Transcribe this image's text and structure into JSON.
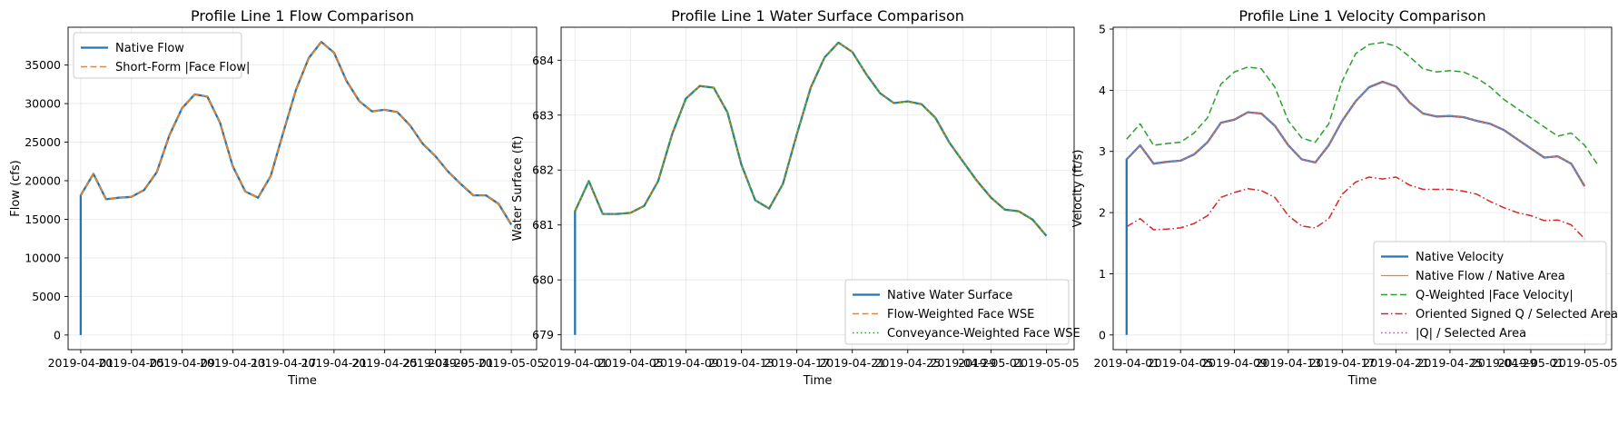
{
  "chart_data": [
    {
      "type": "line",
      "title": "Profile Line 1 Flow Comparison",
      "xlabel": "Time",
      "ylabel": "Flow (cfs)",
      "x_ticks": [
        "2019-04-01",
        "2019-04-05",
        "2019-04-09",
        "2019-04-13",
        "2019-04-17",
        "2019-04-21",
        "2019-04-25",
        "2019-04-29",
        "2019-05-01",
        "2019-05-05"
      ],
      "x_tick_labels_visible": [
        "2019-04-01",
        "2019-04-05",
        "2019-04-09",
        "2019-04-13",
        "2019-04-17",
        "2019-04-21",
        "2019-04-25",
        "2019-04-29",
        "2019-05-01",
        "2019-05-05"
      ],
      "y_ticks": [
        0,
        5000,
        10000,
        15000,
        20000,
        25000,
        30000,
        35000
      ],
      "y_tick_labels": [
        "0",
        "5000",
        "10000",
        "15000",
        "20000",
        "25000",
        "30000",
        "35000"
      ],
      "xlim": [
        "2019-03-31",
        "2019-05-07"
      ],
      "ylim": [
        -1900,
        39900
      ],
      "grid": true,
      "legend_position": "upper left",
      "x": [
        "2019-04-01",
        "2019-04-01",
        "2019-04-02",
        "2019-04-03",
        "2019-04-04",
        "2019-04-05",
        "2019-04-06",
        "2019-04-07",
        "2019-04-08",
        "2019-04-09",
        "2019-04-10",
        "2019-04-11",
        "2019-04-12",
        "2019-04-13",
        "2019-04-14",
        "2019-04-15",
        "2019-04-16",
        "2019-04-17",
        "2019-04-18",
        "2019-04-19",
        "2019-04-20",
        "2019-04-21",
        "2019-04-22",
        "2019-04-23",
        "2019-04-24",
        "2019-04-25",
        "2019-04-26",
        "2019-04-27",
        "2019-04-28",
        "2019-04-29",
        "2019-04-30",
        "2019-05-01",
        "2019-05-02",
        "2019-05-03",
        "2019-05-04",
        "2019-05-05",
        "2019-05-06"
      ],
      "series": [
        {
          "name": "Native Flow",
          "color": "#1f77b4",
          "style": "solid",
          "width": 2.3,
          "values": [
            0,
            18100,
            20900,
            17600,
            17800,
            17900,
            18800,
            21100,
            25900,
            29400,
            31200,
            30900,
            27500,
            21900,
            18600,
            17800,
            20600,
            26300,
            31800,
            35900,
            38000,
            36600,
            32900,
            30300,
            29000,
            29200,
            28900,
            27200,
            24800,
            23200,
            21200,
            19600,
            18100,
            18100,
            17000,
            14300,
            null
          ]
        },
        {
          "name": "Short-Form |Face Flow|",
          "color": "#ff7f0e",
          "style": "dashed",
          "width": 1.5,
          "values": [
            null,
            18100,
            20900,
            17600,
            17800,
            17900,
            18800,
            21100,
            25900,
            29400,
            31200,
            30900,
            27500,
            21900,
            18600,
            17800,
            20600,
            26300,
            31800,
            35900,
            38000,
            36600,
            32900,
            30300,
            29000,
            29200,
            28900,
            27200,
            24800,
            23200,
            21200,
            19600,
            18100,
            18100,
            17000,
            14300,
            null
          ]
        }
      ]
    },
    {
      "type": "line",
      "title": "Profile Line 1 Water Surface Comparison",
      "xlabel": "Time",
      "ylabel": "Water Surface (ft)",
      "x_ticks": [
        "2019-04-01",
        "2019-04-05",
        "2019-04-09",
        "2019-04-13",
        "2019-04-17",
        "2019-04-21",
        "2019-04-25",
        "2019-04-29",
        "2019-05-01",
        "2019-05-05"
      ],
      "x_tick_labels_visible": [
        "2019-04-01",
        "2019-04-05",
        "2019-04-09",
        "2019-04-13",
        "2019-04-17",
        "2019-04-21",
        "2019-04-25",
        "2019-04-29",
        "2019-05-01",
        "2019-05-05"
      ],
      "y_ticks": [
        679,
        680,
        681,
        682,
        683,
        684
      ],
      "y_tick_labels": [
        "679",
        "680",
        "681",
        "682",
        "683",
        "684"
      ],
      "xlim": [
        "2019-03-31",
        "2019-05-07"
      ],
      "ylim": [
        678.73,
        684.6
      ],
      "grid": true,
      "legend_position": "lower right",
      "x": [
        "2019-04-01",
        "2019-04-01",
        "2019-04-02",
        "2019-04-03",
        "2019-04-04",
        "2019-04-05",
        "2019-04-06",
        "2019-04-07",
        "2019-04-08",
        "2019-04-09",
        "2019-04-10",
        "2019-04-11",
        "2019-04-12",
        "2019-04-13",
        "2019-04-14",
        "2019-04-15",
        "2019-04-16",
        "2019-04-17",
        "2019-04-18",
        "2019-04-19",
        "2019-04-20",
        "2019-04-21",
        "2019-04-22",
        "2019-04-23",
        "2019-04-24",
        "2019-04-25",
        "2019-04-26",
        "2019-04-27",
        "2019-04-28",
        "2019-04-29",
        "2019-04-30",
        "2019-05-01",
        "2019-05-02",
        "2019-05-03",
        "2019-05-04",
        "2019-05-05",
        "2019-05-06"
      ],
      "series": [
        {
          "name": "Native Water Surface",
          "color": "#1f77b4",
          "style": "solid",
          "width": 2.3,
          "values": [
            679.0,
            681.25,
            681.8,
            681.2,
            681.2,
            681.22,
            681.35,
            681.8,
            682.65,
            683.3,
            683.53,
            683.5,
            683.05,
            682.1,
            681.45,
            681.3,
            681.75,
            682.65,
            683.5,
            684.05,
            684.32,
            684.15,
            683.75,
            683.4,
            683.22,
            683.25,
            683.2,
            682.95,
            682.5,
            682.15,
            681.8,
            681.5,
            681.28,
            681.25,
            681.1,
            680.8,
            null
          ]
        },
        {
          "name": "Flow-Weighted Face WSE",
          "color": "#ff7f0e",
          "style": "dashed",
          "width": 1.5,
          "values": [
            null,
            681.25,
            681.8,
            681.2,
            681.2,
            681.22,
            681.35,
            681.8,
            682.65,
            683.3,
            683.53,
            683.5,
            683.05,
            682.1,
            681.45,
            681.3,
            681.75,
            682.65,
            683.5,
            684.05,
            684.32,
            684.15,
            683.75,
            683.4,
            683.22,
            683.25,
            683.2,
            682.95,
            682.5,
            682.15,
            681.8,
            681.5,
            681.28,
            681.25,
            681.1,
            680.8,
            null
          ]
        },
        {
          "name": "Conveyance-Weighted Face WSE",
          "color": "#2ca02c",
          "style": "dotted",
          "width": 1.5,
          "values": [
            null,
            681.25,
            681.8,
            681.2,
            681.2,
            681.22,
            681.35,
            681.8,
            682.65,
            683.3,
            683.53,
            683.5,
            683.05,
            682.1,
            681.45,
            681.3,
            681.75,
            682.65,
            683.5,
            684.05,
            684.32,
            684.15,
            683.75,
            683.4,
            683.22,
            683.25,
            683.2,
            682.95,
            682.5,
            682.15,
            681.8,
            681.5,
            681.28,
            681.25,
            681.1,
            680.8,
            null
          ]
        }
      ]
    },
    {
      "type": "line",
      "title": "Profile Line 1 Velocity Comparison",
      "xlabel": "Time",
      "ylabel": "Velocity (ft/s)",
      "x_ticks": [
        "2019-04-01",
        "2019-04-05",
        "2019-04-09",
        "2019-04-13",
        "2019-04-17",
        "2019-04-21",
        "2019-04-25",
        "2019-04-29",
        "2019-05-01",
        "2019-05-05"
      ],
      "x_tick_labels_visible": [
        "2019-04-01",
        "2019-04-05",
        "2019-04-09",
        "2019-04-13",
        "2019-04-17",
        "2019-04-21",
        "2019-04-25",
        "2019-04-29",
        "2019-05-01",
        "2019-05-05"
      ],
      "y_ticks": [
        0,
        1,
        2,
        3,
        4,
        5
      ],
      "y_tick_labels": [
        "0",
        "1",
        "2",
        "3",
        "4",
        "5"
      ],
      "xlim": [
        "2019-03-31",
        "2019-05-07"
      ],
      "ylim": [
        -0.24,
        5.03
      ],
      "grid": true,
      "legend_position": "lower right",
      "x": [
        "2019-04-01",
        "2019-04-01",
        "2019-04-02",
        "2019-04-03",
        "2019-04-04",
        "2019-04-05",
        "2019-04-06",
        "2019-04-07",
        "2019-04-08",
        "2019-04-09",
        "2019-04-10",
        "2019-04-11",
        "2019-04-12",
        "2019-04-13",
        "2019-04-14",
        "2019-04-15",
        "2019-04-16",
        "2019-04-17",
        "2019-04-18",
        "2019-04-19",
        "2019-04-20",
        "2019-04-21",
        "2019-04-22",
        "2019-04-23",
        "2019-04-24",
        "2019-04-25",
        "2019-04-26",
        "2019-04-27",
        "2019-04-28",
        "2019-04-29",
        "2019-04-30",
        "2019-05-01",
        "2019-05-02",
        "2019-05-03",
        "2019-05-04",
        "2019-05-05",
        "2019-05-06"
      ],
      "series": [
        {
          "name": "Native Velocity",
          "color": "#1f77b4",
          "style": "solid",
          "width": 2.3,
          "values": [
            0,
            2.87,
            3.1,
            2.8,
            2.83,
            2.85,
            2.95,
            3.15,
            3.47,
            3.52,
            3.64,
            3.62,
            3.42,
            3.1,
            2.87,
            2.82,
            3.1,
            3.5,
            3.82,
            4.05,
            4.14,
            4.06,
            3.8,
            3.62,
            3.57,
            3.58,
            3.56,
            3.5,
            3.45,
            3.35,
            3.2,
            3.05,
            2.9,
            2.92,
            2.8,
            2.43,
            null
          ]
        },
        {
          "name": "Native Flow / Native Area",
          "color": "#ff7f0e",
          "style": "solid",
          "width": 1.2,
          "values": [
            null,
            2.87,
            3.1,
            2.8,
            2.83,
            2.85,
            2.95,
            3.15,
            3.47,
            3.52,
            3.64,
            3.62,
            3.42,
            3.1,
            2.87,
            2.82,
            3.1,
            3.5,
            3.82,
            4.05,
            4.14,
            4.06,
            3.8,
            3.62,
            3.57,
            3.58,
            3.56,
            3.5,
            3.45,
            3.35,
            3.2,
            3.05,
            2.9,
            2.92,
            2.8,
            2.43,
            null
          ]
        },
        {
          "name": "Q-Weighted |Face Velocity|",
          "color": "#2ca02c",
          "style": "dashed",
          "width": 1.5,
          "values": [
            null,
            3.2,
            3.45,
            3.1,
            3.13,
            3.15,
            3.3,
            3.55,
            4.1,
            4.3,
            4.38,
            4.35,
            4.05,
            3.5,
            3.22,
            3.15,
            3.45,
            4.15,
            4.6,
            4.75,
            4.78,
            4.72,
            4.55,
            4.35,
            4.3,
            4.32,
            4.3,
            4.2,
            4.05,
            3.85,
            3.7,
            3.55,
            3.4,
            3.25,
            3.3,
            3.1,
            2.77
          ]
        },
        {
          "name": "Oriented Signed Q / Selected Area",
          "color": "#d62728",
          "style": "dashdot",
          "width": 1.5,
          "values": [
            null,
            1.77,
            1.9,
            1.72,
            1.73,
            1.75,
            1.82,
            1.95,
            2.25,
            2.33,
            2.39,
            2.36,
            2.25,
            1.95,
            1.78,
            1.75,
            1.9,
            2.3,
            2.5,
            2.58,
            2.55,
            2.58,
            2.45,
            2.38,
            2.38,
            2.38,
            2.35,
            2.3,
            2.18,
            2.08,
            2.0,
            1.95,
            1.87,
            1.88,
            1.8,
            1.57,
            null
          ]
        },
        {
          "name": "|Q| / Selected Area",
          "color": "#9467bd",
          "style": "dotted",
          "width": 1.5,
          "values": [
            null,
            2.87,
            3.1,
            2.8,
            2.83,
            2.85,
            2.95,
            3.15,
            3.47,
            3.52,
            3.64,
            3.62,
            3.42,
            3.1,
            2.87,
            2.82,
            3.1,
            3.5,
            3.82,
            4.05,
            4.14,
            4.06,
            3.8,
            3.62,
            3.57,
            3.58,
            3.56,
            3.5,
            3.45,
            3.35,
            3.2,
            3.05,
            2.9,
            2.92,
            2.8,
            2.43,
            null
          ]
        }
      ]
    }
  ]
}
